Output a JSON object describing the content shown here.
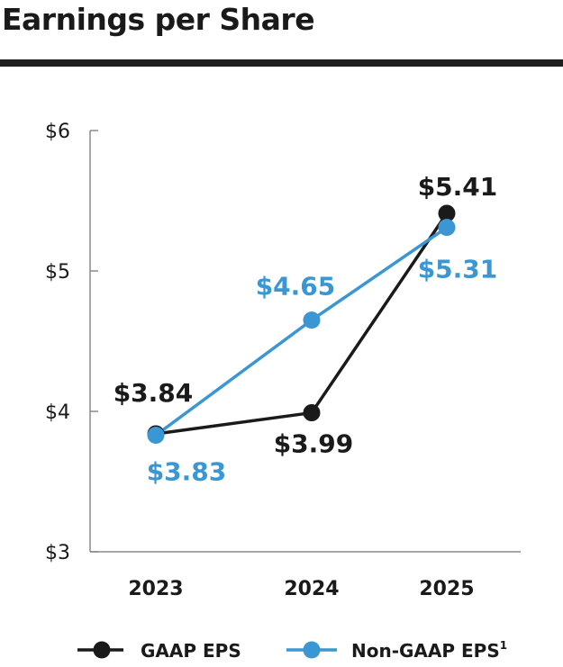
{
  "title": "Earnings per Share",
  "colors": {
    "gaap": "#1a1a1a",
    "non_gaap": "#3a97d4",
    "axis": "#8a8a8a"
  },
  "chart_data": {
    "type": "line",
    "title": "Earnings per Share",
    "x": [
      "2023",
      "2024",
      "2025"
    ],
    "xlabel": "",
    "ylabel": "",
    "ylim": [
      3,
      6
    ],
    "yticks": [
      3,
      4,
      5,
      6
    ],
    "ytick_labels": [
      "$3",
      "$4",
      "$5",
      "$6"
    ],
    "grid": false,
    "legend_position": "bottom",
    "series": [
      {
        "name": "GAAP EPS",
        "values": [
          3.84,
          3.99,
          5.41
        ],
        "labels": [
          "$3.84",
          "$3.99",
          "$5.41"
        ],
        "color": "#1a1a1a"
      },
      {
        "name": "Non-GAAP EPS",
        "superscript": "1",
        "values": [
          3.83,
          4.65,
          5.31
        ],
        "labels": [
          "$3.83",
          "$4.65",
          "$5.31"
        ],
        "color": "#3a97d4"
      }
    ]
  }
}
